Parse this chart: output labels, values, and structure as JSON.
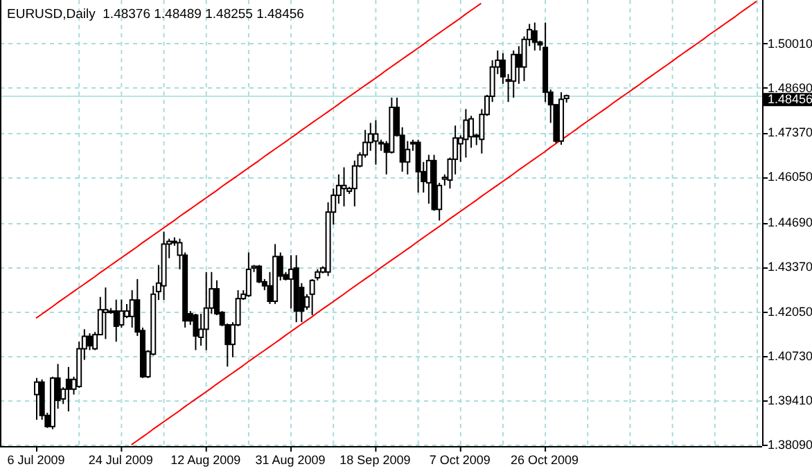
{
  "chart_data": {
    "type": "candlestick",
    "title": "EURUSD,Daily  1.48376 1.48489 1.48255 1.48456",
    "categories": [
      "6 Jul 2009",
      null,
      null,
      null,
      null,
      null,
      null,
      null,
      null,
      null,
      null,
      null,
      null,
      null,
      null,
      null,
      "24 Jul 2009",
      null,
      null,
      null,
      null,
      null,
      null,
      null,
      null,
      null,
      null,
      null,
      null,
      null,
      null,
      null,
      "12 Aug 2009",
      null,
      null,
      null,
      null,
      null,
      null,
      null,
      null,
      null,
      null,
      null,
      null,
      null,
      null,
      null,
      "31 Aug 2009",
      null,
      null,
      null,
      null,
      null,
      null,
      null,
      null,
      null,
      null,
      null,
      null,
      null,
      null,
      null,
      "18 Sep 2009",
      null,
      null,
      null,
      null,
      null,
      null,
      null,
      null,
      null,
      null,
      null,
      null,
      null,
      null,
      null,
      "7 Oct 2009",
      null,
      null,
      null,
      null,
      null,
      null,
      null,
      null,
      null,
      null,
      null,
      null,
      null,
      null,
      null,
      "26 Oct 2009",
      null,
      null,
      null,
      null,
      null,
      null,
      null,
      null,
      null,
      null,
      null,
      null,
      null,
      null,
      null,
      null,
      null,
      null,
      null,
      null,
      null,
      null,
      null,
      null,
      null,
      null,
      null,
      null,
      null,
      null,
      null,
      null,
      null,
      null,
      null,
      null,
      null,
      null,
      null,
      null
    ],
    "ohlc": [
      [
        1.3958,
        1.4007,
        1.3883,
        1.3995
      ],
      [
        1.3995,
        1.4003,
        1.3883,
        1.3896
      ],
      [
        1.3896,
        1.3904,
        1.3859,
        1.3863
      ],
      [
        1.3863,
        1.4011,
        1.3855,
        1.4007
      ],
      [
        1.4007,
        1.4049,
        1.3916,
        1.3941
      ],
      [
        1.3945,
        1.398,
        1.393,
        1.3974
      ],
      [
        1.4003,
        1.404,
        1.3908,
        1.3974
      ],
      [
        1.3974,
        1.4011,
        1.3958,
        1.4003
      ],
      [
        1.3982,
        1.4115,
        1.3978,
        1.4094
      ],
      [
        1.4094,
        1.4152,
        1.4061,
        1.4131
      ],
      [
        1.4131,
        1.414,
        1.409,
        1.4103
      ],
      [
        1.4094,
        1.4144,
        1.409,
        1.4136
      ],
      [
        1.4136,
        1.4248,
        1.4136,
        1.421
      ],
      [
        1.4202,
        1.4276,
        1.4123,
        1.421
      ],
      [
        1.4206,
        1.4215,
        1.4198,
        1.4202
      ],
      [
        1.4206,
        1.424,
        1.4115,
        1.4161
      ],
      [
        1.4165,
        1.424,
        1.4157,
        1.4206
      ],
      [
        1.419,
        1.4227,
        1.4185,
        1.4206
      ],
      [
        1.419,
        1.4268,
        1.4157,
        1.4239
      ],
      [
        1.4239,
        1.4301,
        1.4132,
        1.4144
      ],
      [
        1.4148,
        1.4157,
        1.4007,
        1.4011
      ],
      [
        1.4011,
        1.409,
        1.4007,
        1.4086
      ],
      [
        1.4078,
        1.4281,
        1.4074,
        1.4256
      ],
      [
        1.4264,
        1.4343,
        1.4239,
        1.4289
      ],
      [
        1.4281,
        1.4442,
        1.4239,
        1.4405
      ],
      [
        1.4405,
        1.4421,
        1.4363,
        1.4413
      ],
      [
        1.4413,
        1.4425,
        1.44,
        1.4409
      ],
      [
        1.4372,
        1.4421,
        1.433,
        1.4409
      ],
      [
        1.4372,
        1.438,
        1.4157,
        1.4177
      ],
      [
        1.4198,
        1.4206,
        1.4165,
        1.4177
      ],
      [
        1.4194,
        1.4198,
        1.409,
        1.4132
      ],
      [
        1.4128,
        1.4198,
        1.4103,
        1.4152
      ],
      [
        1.4152,
        1.4322,
        1.409,
        1.4215
      ],
      [
        1.4215,
        1.4322,
        1.4198,
        1.4272
      ],
      [
        1.4272,
        1.4297,
        1.4194,
        1.4198
      ],
      [
        1.4202,
        1.4206,
        1.4161,
        1.4165
      ],
      [
        1.4165,
        1.4169,
        1.4041,
        1.4107
      ],
      [
        1.4107,
        1.4173,
        1.4069,
        1.4165
      ],
      [
        1.4165,
        1.4268,
        1.4161,
        1.4243
      ],
      [
        1.4243,
        1.4268,
        1.4239,
        1.4256
      ],
      [
        1.4252,
        1.438,
        1.4248,
        1.433
      ],
      [
        1.4334,
        1.4343,
        1.4322,
        1.4339
      ],
      [
        1.4339,
        1.4343,
        1.4289,
        1.4293
      ],
      [
        1.4293,
        1.4301,
        1.4268,
        1.4281
      ],
      [
        1.4281,
        1.4322,
        1.4227,
        1.4235
      ],
      [
        1.4235,
        1.4405,
        1.4227,
        1.4368
      ],
      [
        1.4368,
        1.438,
        1.4297,
        1.431
      ],
      [
        1.4314,
        1.4322,
        1.4297,
        1.4301
      ],
      [
        1.4301,
        1.4372,
        1.4214,
        1.433
      ],
      [
        1.4334,
        1.4372,
        1.4173,
        1.4206
      ],
      [
        1.4276,
        1.4289,
        1.4173,
        1.4206
      ],
      [
        1.4218,
        1.4256,
        1.421,
        1.4248
      ],
      [
        1.4256,
        1.4301,
        1.4194,
        1.4297
      ],
      [
        1.4305,
        1.433,
        1.4297,
        1.4322
      ],
      [
        1.4322,
        1.4339,
        1.4318,
        1.4334
      ],
      [
        1.4322,
        1.4529,
        1.431,
        1.45
      ],
      [
        1.45,
        1.457,
        1.4463,
        1.455
      ],
      [
        1.455,
        1.4612,
        1.4525,
        1.4579
      ],
      [
        1.457,
        1.4633,
        1.4517,
        1.4579
      ],
      [
        1.4562,
        1.4575,
        1.4554,
        1.457
      ],
      [
        1.457,
        1.4653,
        1.4517,
        1.4637
      ],
      [
        1.4637,
        1.4678,
        1.4633,
        1.467
      ],
      [
        1.467,
        1.4744,
        1.4662,
        1.4707
      ],
      [
        1.4707,
        1.4765,
        1.4682,
        1.4732
      ],
      [
        1.4711,
        1.4773,
        1.4641,
        1.4732
      ],
      [
        1.4707,
        1.4715,
        1.4682,
        1.4703
      ],
      [
        1.4703,
        1.4711,
        1.4612,
        1.4678
      ],
      [
        1.4678,
        1.484,
        1.4674,
        1.4811
      ],
      [
        1.4811,
        1.484,
        1.4724,
        1.4728
      ],
      [
        1.4728,
        1.4752,
        1.462,
        1.4649
      ],
      [
        1.4649,
        1.4711,
        1.4612,
        1.4686
      ],
      [
        1.4707,
        1.4715,
        1.4682,
        1.4703
      ],
      [
        1.4707,
        1.4715,
        1.4558,
        1.462
      ],
      [
        1.462,
        1.4649,
        1.4558,
        1.4591
      ],
      [
        1.4587,
        1.467,
        1.4525,
        1.4653
      ],
      [
        1.4653,
        1.467,
        1.4504,
        1.4508
      ],
      [
        1.4508,
        1.4587,
        1.4475,
        1.4579
      ],
      [
        1.4598,
        1.4612,
        1.4579,
        1.4603
      ],
      [
        1.4595,
        1.4662,
        1.457,
        1.4657
      ],
      [
        1.4657,
        1.4757,
        1.4612,
        1.472
      ],
      [
        1.4703,
        1.4728,
        1.4649,
        1.472
      ],
      [
        1.4716,
        1.4806,
        1.4662,
        1.4773
      ],
      [
        1.4724,
        1.4786,
        1.4691,
        1.4777
      ],
      [
        1.4728,
        1.4732,
        1.4699,
        1.4724
      ],
      [
        1.4716,
        1.4806,
        1.4674,
        1.479
      ],
      [
        1.479,
        1.4848,
        1.4786,
        1.4844
      ],
      [
        1.4844,
        1.4951,
        1.4827,
        1.4931
      ],
      [
        1.4931,
        1.498,
        1.491,
        1.4951
      ],
      [
        1.4951,
        1.4972,
        1.4881,
        1.4902
      ],
      [
        1.4893,
        1.491,
        1.4827,
        1.4889
      ],
      [
        1.4889,
        1.498,
        1.484,
        1.4968
      ],
      [
        1.4968,
        1.4993,
        1.4881,
        1.4931
      ],
      [
        1.4931,
        1.5022,
        1.4889,
        1.5013
      ],
      [
        1.5013,
        1.5059,
        1.4993,
        1.5042
      ],
      [
        1.5038,
        1.5063,
        1.498,
        1.5005
      ],
      [
        1.5005,
        1.5009,
        1.498,
        1.4997
      ],
      [
        1.4989,
        1.5063,
        1.4827,
        1.4856
      ],
      [
        1.4856,
        1.4864,
        1.4765,
        1.4819
      ],
      [
        1.4819,
        1.4819,
        1.4705,
        1.4711
      ],
      [
        1.4711,
        1.4856,
        1.47,
        1.4835
      ],
      [
        1.48376,
        1.48489,
        1.48255,
        1.48456
      ],
      null,
      null,
      null,
      null,
      null,
      null,
      null,
      null,
      null,
      null,
      null,
      null,
      null,
      null,
      null,
      null,
      null,
      null,
      null,
      null,
      null,
      null,
      null,
      null,
      null,
      null,
      null,
      null,
      null,
      null,
      null,
      null,
      null,
      null,
      null,
      null
    ],
    "series": [
      {
        "type": "line",
        "color": "#ff0000",
        "values": [
          1.4185,
          1.4196,
          1.4207,
          1.4218,
          1.423,
          1.4241,
          1.4252,
          1.4263,
          1.4274,
          1.4285,
          1.4296,
          1.4307,
          1.4319,
          1.433,
          1.4341,
          1.4352,
          1.4363,
          1.4374,
          1.4385,
          1.4396,
          1.4408,
          1.4419,
          1.443,
          1.4441,
          1.4452,
          1.4463,
          1.4474,
          1.4486,
          1.4497,
          1.4508,
          1.4519,
          1.453,
          1.4541,
          1.4552,
          1.4563,
          1.4575,
          1.4586,
          1.4597,
          1.4608,
          1.4619,
          1.463,
          1.4641,
          1.4652,
          1.4664,
          1.4675,
          1.4686,
          1.4697,
          1.4708,
          1.4719,
          1.473,
          1.4742,
          1.4753,
          1.4764,
          1.4775,
          1.4786,
          1.4797,
          1.4808,
          1.4819,
          1.4831,
          1.4842,
          1.4853,
          1.4864,
          1.4875,
          1.4886,
          1.4897,
          1.4908,
          1.492,
          1.4931,
          1.4942,
          1.4953,
          1.4964,
          1.4975,
          1.4986,
          1.4997,
          1.5009,
          1.502,
          1.5031,
          1.5042,
          1.5053,
          1.5064,
          1.5075,
          1.5087,
          1.5098,
          1.5109,
          1.512,
          null,
          null,
          null,
          null,
          null,
          null,
          null,
          null,
          null,
          null,
          null,
          null,
          null,
          null,
          null,
          null,
          null,
          null,
          null,
          null,
          null,
          null,
          null,
          null,
          null,
          null,
          null,
          null,
          null,
          null,
          null,
          null,
          null,
          null,
          null,
          null,
          null,
          null,
          null,
          null,
          null,
          null,
          null,
          null,
          null,
          null,
          null,
          null,
          null,
          null,
          null,
          null
        ]
      },
      {
        "type": "line",
        "color": "#ff0000",
        "values": [
          null,
          null,
          null,
          null,
          null,
          null,
          null,
          null,
          null,
          null,
          null,
          null,
          null,
          null,
          null,
          null,
          null,
          null,
          1.3809,
          1.382,
          1.3831,
          1.3842,
          1.3854,
          1.3865,
          1.3876,
          1.3887,
          1.3898,
          1.3909,
          1.3921,
          1.3932,
          1.3943,
          1.3954,
          1.3965,
          1.3976,
          1.3988,
          1.3999,
          1.401,
          1.4021,
          1.4032,
          1.4043,
          1.4055,
          1.4066,
          1.4077,
          1.4088,
          1.4099,
          1.411,
          1.4121,
          1.4133,
          1.4144,
          1.4155,
          1.4166,
          1.4177,
          1.4188,
          1.42,
          1.4211,
          1.4222,
          1.4233,
          1.4244,
          1.4255,
          1.4267,
          1.4278,
          1.4289,
          1.43,
          1.4311,
          1.4322,
          1.4334,
          1.4345,
          1.4356,
          1.4367,
          1.4378,
          1.4389,
          1.44,
          1.4412,
          1.4423,
          1.4434,
          1.4445,
          1.4456,
          1.4467,
          1.4479,
          1.449,
          1.4501,
          1.4512,
          1.4523,
          1.4534,
          1.4546,
          1.4557,
          1.4568,
          1.4579,
          1.459,
          1.4601,
          1.4612,
          1.4624,
          1.4635,
          1.4646,
          1.4657,
          1.4668,
          1.4679,
          1.4691,
          1.4702,
          1.4713,
          1.4724,
          1.4735,
          1.4746,
          1.4758,
          1.4769,
          1.478,
          1.4791,
          1.4802,
          1.4813,
          1.4825,
          1.4836,
          1.4847,
          1.4858,
          1.4869,
          1.488,
          1.4892,
          1.4903,
          1.4914,
          1.4925,
          1.4936,
          1.4947,
          1.4959,
          1.497,
          1.4981,
          1.4992,
          1.5003,
          1.5014,
          1.5026,
          1.5037,
          1.5048,
          1.5059,
          1.507,
          1.5081,
          1.5093,
          1.5104,
          1.5115,
          1.5126
        ]
      }
    ],
    "ylim": [
      1.3805,
      1.513
    ],
    "yticks": [
      {
        "value": 1.3809,
        "label": "1.38090"
      },
      {
        "value": 1.3941,
        "label": "1.39410"
      },
      {
        "value": 1.4073,
        "label": "1.40730"
      },
      {
        "value": 1.4205,
        "label": "1.42050"
      },
      {
        "value": 1.4337,
        "label": "1.43370"
      },
      {
        "value": 1.4469,
        "label": "1.44690"
      },
      {
        "value": 1.4605,
        "label": "1.46050"
      },
      {
        "value": 1.4737,
        "label": "1.47370"
      },
      {
        "value": 1.4869,
        "label": "1.48690"
      },
      {
        "value": 1.5001,
        "label": "1.50010"
      }
    ],
    "grid": true,
    "ref_lines": [
      {
        "axis": "y",
        "value": 1.48456,
        "label": "1.48456",
        "color": "#b8e4e4"
      }
    ]
  }
}
